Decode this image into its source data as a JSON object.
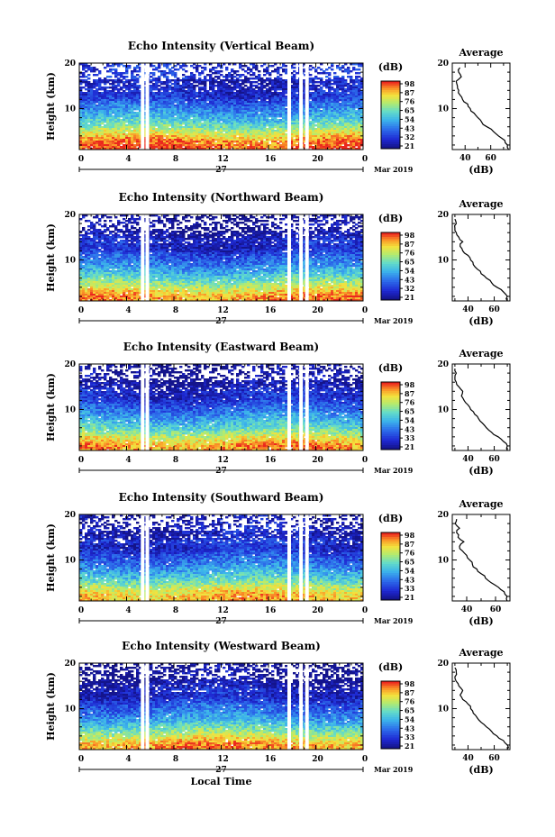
{
  "chart_data": [
    {
      "type": "heatmap",
      "title": "Echo Intensity (Vertical Beam)",
      "ylabel": "Height (km)",
      "xlim": [
        0,
        24
      ],
      "ylim": [
        1,
        20
      ],
      "x_ticks": [
        "0",
        "4",
        "8",
        "12",
        "16",
        "20",
        "0"
      ],
      "y_ticks": [
        "10",
        "20"
      ],
      "date_label": "27",
      "month_label": "Mar 2019",
      "colorbar": {
        "unit": "(dB)",
        "ticks": [
          "98",
          "87",
          "76",
          "65",
          "54",
          "43",
          "32",
          "21"
        ]
      },
      "gaps_hours": [
        5.2,
        5.6,
        17.6,
        18.6,
        19.1
      ],
      "profile": {
        "title": "Average",
        "xlabel": "(dB)",
        "x_ticks": [
          "40",
          "60"
        ],
        "xlim": [
          30,
          75
        ],
        "heights": [
          1,
          2,
          3,
          4,
          5,
          6,
          7,
          8,
          9,
          10,
          11,
          12,
          13,
          14,
          15,
          16,
          17,
          18,
          19
        ],
        "values": [
          74,
          73,
          71,
          66,
          62,
          57,
          53,
          50,
          47,
          44,
          42,
          38,
          36,
          35,
          34,
          33,
          37,
          35,
          36
        ]
      }
    },
    {
      "type": "heatmap",
      "title": "Echo Intensity (Northward Beam)",
      "ylabel": "Height (km)",
      "xlim": [
        0,
        24
      ],
      "ylim": [
        1,
        20
      ],
      "x_ticks": [
        "0",
        "4",
        "8",
        "12",
        "16",
        "20",
        "0"
      ],
      "y_ticks": [
        "10",
        "20"
      ],
      "date_label": "27",
      "month_label": "Mar 2019",
      "colorbar": {
        "unit": "(dB)",
        "ticks": [
          "98",
          "87",
          "76",
          "65",
          "54",
          "43",
          "32",
          "21"
        ]
      },
      "gaps_hours": [
        5.2,
        5.6,
        17.6,
        18.6,
        19.1
      ],
      "profile": {
        "title": "Average",
        "xlabel": "(dB)",
        "x_ticks": [
          "40",
          "60"
        ],
        "xlim": [
          28,
          72
        ],
        "heights": [
          1,
          2,
          3,
          4,
          5,
          6,
          7,
          8,
          9,
          10,
          11,
          12,
          13,
          14,
          15,
          16,
          17,
          18,
          19
        ],
        "values": [
          70,
          70,
          67,
          62,
          58,
          54,
          50,
          47,
          44,
          42,
          40,
          36,
          34,
          36,
          33,
          31,
          30,
          31,
          30
        ]
      }
    },
    {
      "type": "heatmap",
      "title": "Echo Intensity (Eastward Beam)",
      "ylabel": "Height (km)",
      "xlim": [
        0,
        24
      ],
      "ylim": [
        1,
        20
      ],
      "x_ticks": [
        "0",
        "4",
        "8",
        "12",
        "16",
        "20",
        "0"
      ],
      "y_ticks": [
        "10",
        "20"
      ],
      "date_label": "27",
      "month_label": "Mar 2019",
      "colorbar": {
        "unit": "(dB)",
        "ticks": [
          "98",
          "87",
          "76",
          "65",
          "54",
          "43",
          "33",
          "21"
        ]
      },
      "gaps_hours": [
        5.2,
        5.6,
        17.6,
        18.6,
        19.1
      ],
      "profile": {
        "title": "Average",
        "xlabel": "(dB)",
        "x_ticks": [
          "40",
          "60"
        ],
        "xlim": [
          28,
          72
        ],
        "heights": [
          1,
          2,
          3,
          4,
          5,
          6,
          7,
          8,
          9,
          10,
          11,
          12,
          13,
          14,
          15,
          16,
          17,
          18,
          19
        ],
        "values": [
          70,
          70,
          67,
          63,
          58,
          54,
          51,
          48,
          45,
          42,
          40,
          37,
          35,
          36,
          33,
          31,
          30,
          31,
          30
        ]
      }
    },
    {
      "type": "heatmap",
      "title": "Echo Intensity (Southward Beam)",
      "ylabel": "Height (km)",
      "xlim": [
        0,
        24
      ],
      "ylim": [
        1,
        20
      ],
      "x_ticks": [
        "0",
        "4",
        "8",
        "12",
        "16",
        "20",
        "0"
      ],
      "y_ticks": [
        "10",
        "20"
      ],
      "date_label": "27",
      "month_label": "Mar 2019",
      "colorbar": {
        "unit": "(dB)",
        "ticks": [
          "98",
          "87",
          "76",
          "65",
          "54",
          "43",
          "33",
          "21"
        ]
      },
      "gaps_hours": [
        5.2,
        5.6,
        17.6,
        18.6,
        19.1
      ],
      "profile": {
        "title": "Average",
        "xlabel": "(dB)",
        "x_ticks": [
          "40",
          "60"
        ],
        "xlim": [
          30,
          70
        ],
        "heights": [
          1,
          2,
          3,
          4,
          5,
          6,
          7,
          8,
          9,
          10,
          11,
          12,
          13,
          14,
          15,
          16,
          17,
          18,
          19
        ],
        "values": [
          68,
          68,
          66,
          62,
          57,
          53,
          50,
          47,
          44,
          42,
          40,
          37,
          35,
          38,
          34,
          33,
          35,
          32,
          33
        ]
      }
    },
    {
      "type": "heatmap",
      "title": "Echo Intensity (Westward Beam)",
      "ylabel": "Height (km)",
      "xlabel": "Local Time",
      "xlim": [
        0,
        24
      ],
      "ylim": [
        1,
        20
      ],
      "x_ticks": [
        "0",
        "4",
        "8",
        "12",
        "16",
        "20",
        "0"
      ],
      "y_ticks": [
        "10",
        "20"
      ],
      "date_label": "27",
      "month_label": "Mar 2019",
      "colorbar": {
        "unit": "(dB)",
        "ticks": [
          "98",
          "87",
          "76",
          "65",
          "54",
          "43",
          "33",
          "21"
        ]
      },
      "gaps_hours": [
        5.2,
        5.6,
        17.6,
        18.6,
        19.1
      ],
      "profile": {
        "title": "Average",
        "xlabel": "(dB)",
        "x_ticks": [
          "40",
          "60"
        ],
        "xlim": [
          28,
          72
        ],
        "heights": [
          1,
          2,
          3,
          4,
          5,
          6,
          7,
          8,
          9,
          10,
          11,
          12,
          13,
          14,
          15,
          16,
          17,
          18,
          19
        ],
        "values": [
          70,
          70,
          67,
          62,
          58,
          54,
          50,
          47,
          44,
          42,
          40,
          36,
          34,
          36,
          33,
          31,
          30,
          31,
          30
        ]
      }
    }
  ]
}
